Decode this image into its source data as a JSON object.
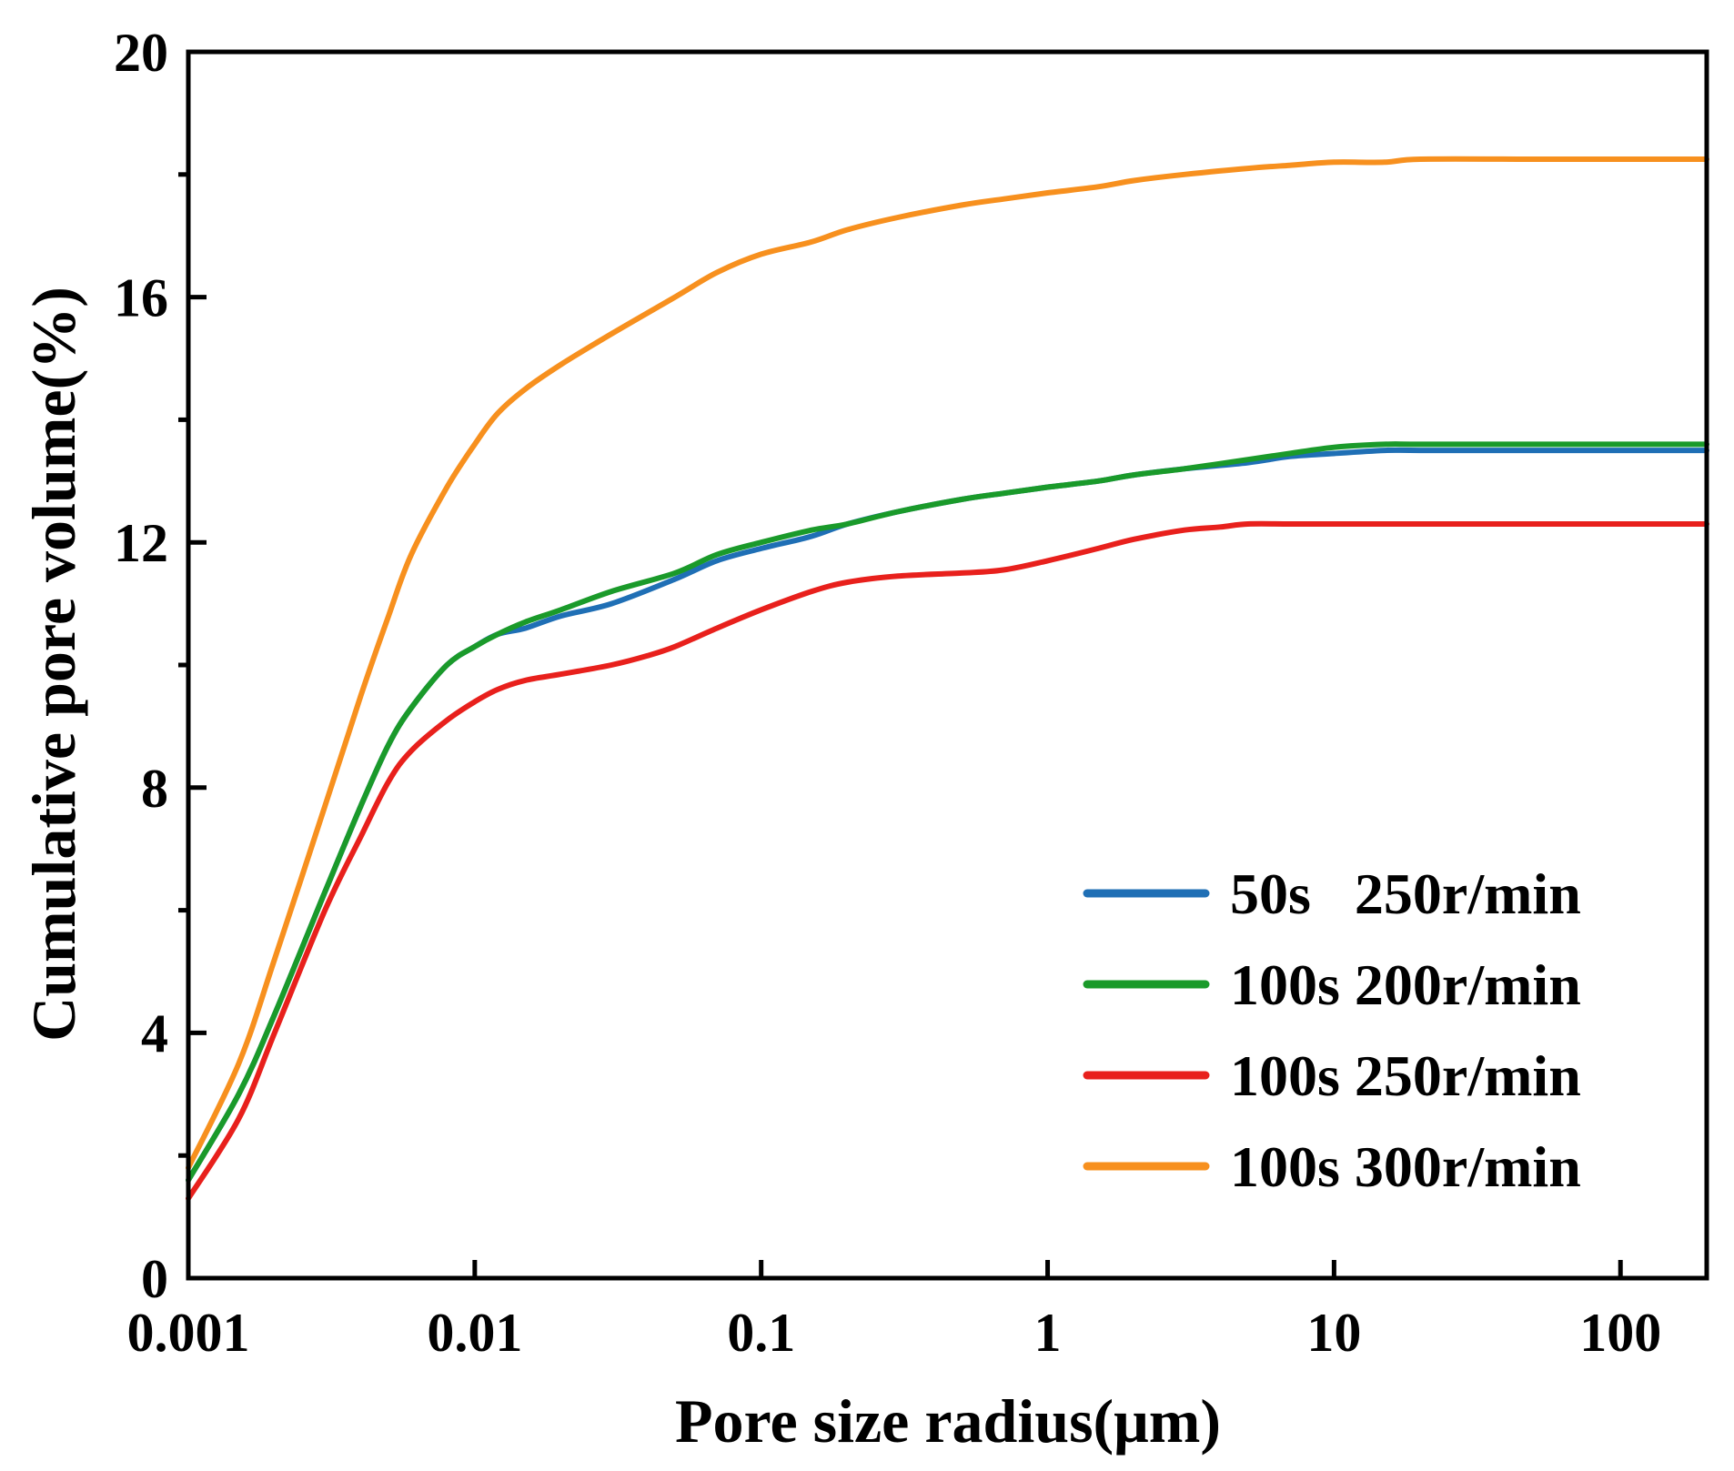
{
  "chart_data": {
    "type": "line",
    "xscale": "log",
    "xlabel": "Pore size radius(μm)",
    "ylabel": "Cumulative pore volume(%)",
    "xlim": [
      0.001,
      200
    ],
    "ylim": [
      0,
      20
    ],
    "xticks": [
      {
        "value": 0.001,
        "label": "0.001"
      },
      {
        "value": 0.01,
        "label": "0.01"
      },
      {
        "value": 0.1,
        "label": "0.1"
      },
      {
        "value": 1,
        "label": "1"
      },
      {
        "value": 10,
        "label": "10"
      },
      {
        "value": 100,
        "label": "100"
      }
    ],
    "yticks": [
      {
        "value": 0,
        "label": "0"
      },
      {
        "value": 4,
        "label": "4"
      },
      {
        "value": 8,
        "label": "8"
      },
      {
        "value": 12,
        "label": "12"
      },
      {
        "value": 16,
        "label": "16"
      },
      {
        "value": 20,
        "label": "20"
      }
    ],
    "legend_position": "bottom-right",
    "series": [
      {
        "name": "50s   250r/min",
        "color": "#1f6fb5",
        "x": [
          0.001,
          0.0015,
          0.002,
          0.003,
          0.004,
          0.005,
          0.006,
          0.008,
          0.01,
          0.012,
          0.015,
          0.02,
          0.03,
          0.05,
          0.07,
          0.1,
          0.15,
          0.2,
          0.3,
          0.5,
          0.7,
          1,
          1.5,
          2,
          3,
          5,
          7,
          10,
          15,
          20,
          50,
          100,
          200
        ],
        "y": [
          1.6,
          3.0,
          4.3,
          6.3,
          7.7,
          8.7,
          9.3,
          10.0,
          10.3,
          10.5,
          10.6,
          10.8,
          11.0,
          11.4,
          11.7,
          11.9,
          12.1,
          12.3,
          12.5,
          12.7,
          12.8,
          12.9,
          13.0,
          13.1,
          13.2,
          13.3,
          13.4,
          13.45,
          13.5,
          13.5,
          13.5,
          13.5,
          13.5
        ]
      },
      {
        "name": "100s 200r/min",
        "color": "#1a9a2a",
        "x": [
          0.001,
          0.0015,
          0.002,
          0.003,
          0.004,
          0.005,
          0.006,
          0.008,
          0.01,
          0.012,
          0.015,
          0.02,
          0.03,
          0.05,
          0.07,
          0.1,
          0.15,
          0.2,
          0.3,
          0.5,
          0.7,
          1,
          1.5,
          2,
          3,
          5,
          7,
          10,
          15,
          20,
          50,
          100,
          200
        ],
        "y": [
          1.6,
          3.0,
          4.3,
          6.3,
          7.7,
          8.7,
          9.3,
          10.0,
          10.3,
          10.5,
          10.7,
          10.9,
          11.2,
          11.5,
          11.8,
          12.0,
          12.2,
          12.3,
          12.5,
          12.7,
          12.8,
          12.9,
          13.0,
          13.1,
          13.2,
          13.35,
          13.45,
          13.55,
          13.6,
          13.6,
          13.6,
          13.6,
          13.6
        ]
      },
      {
        "name": "100s 250r/min",
        "color": "#e8201c",
        "x": [
          0.001,
          0.0015,
          0.002,
          0.003,
          0.004,
          0.005,
          0.006,
          0.008,
          0.01,
          0.012,
          0.015,
          0.02,
          0.03,
          0.04,
          0.05,
          0.07,
          0.1,
          0.15,
          0.2,
          0.3,
          0.5,
          0.7,
          1,
          1.5,
          2,
          3,
          4,
          5,
          7,
          10,
          20,
          50,
          100,
          200
        ],
        "y": [
          1.3,
          2.6,
          4.0,
          6.0,
          7.2,
          8.1,
          8.6,
          9.1,
          9.4,
          9.6,
          9.75,
          9.85,
          10.0,
          10.15,
          10.3,
          10.6,
          10.9,
          11.2,
          11.35,
          11.45,
          11.5,
          11.55,
          11.7,
          11.9,
          12.05,
          12.2,
          12.25,
          12.3,
          12.3,
          12.3,
          12.3,
          12.3,
          12.3,
          12.3
        ]
      },
      {
        "name": "100s 300r/min",
        "color": "#f7901e",
        "x": [
          0.001,
          0.0015,
          0.002,
          0.003,
          0.004,
          0.005,
          0.006,
          0.008,
          0.01,
          0.012,
          0.015,
          0.02,
          0.03,
          0.05,
          0.07,
          0.1,
          0.15,
          0.2,
          0.3,
          0.5,
          0.7,
          1,
          1.5,
          2,
          3,
          5,
          7,
          10,
          15,
          20,
          50,
          100,
          200
        ],
        "y": [
          1.8,
          3.5,
          5.2,
          7.7,
          9.5,
          10.8,
          11.8,
          12.9,
          13.6,
          14.1,
          14.5,
          14.9,
          15.4,
          16.0,
          16.4,
          16.7,
          16.9,
          17.1,
          17.3,
          17.5,
          17.6,
          17.7,
          17.8,
          17.9,
          18.0,
          18.1,
          18.15,
          18.2,
          18.2,
          18.25,
          18.25,
          18.25,
          18.25
        ]
      }
    ]
  }
}
